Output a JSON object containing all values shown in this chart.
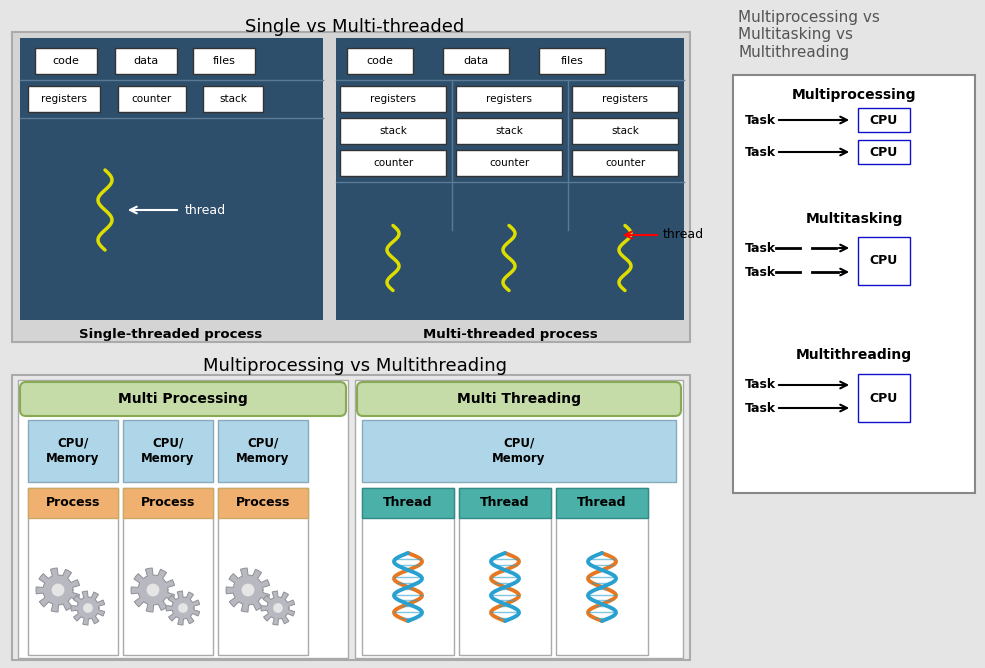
{
  "bg_color": "#e5e5e5",
  "top_title": "Single vs Multi-threaded",
  "bottom_title": "Multiprocessing vs Multithreading",
  "right_title": "Multiprocessing vs\nMultitasking vs\nMultithreading",
  "dark_blue": "#2d4f6b",
  "light_gray_bg": "#cccccc",
  "light_green": "#c5dba8",
  "light_blue_box": "#aed6e8",
  "light_orange": "#f0b070",
  "teal": "#4ab0a8",
  "white": "#ffffff",
  "thread_yellow": "#dddd00",
  "cpu_border_blue": "#1010cc",
  "sep_line_color": "#5a7a95"
}
